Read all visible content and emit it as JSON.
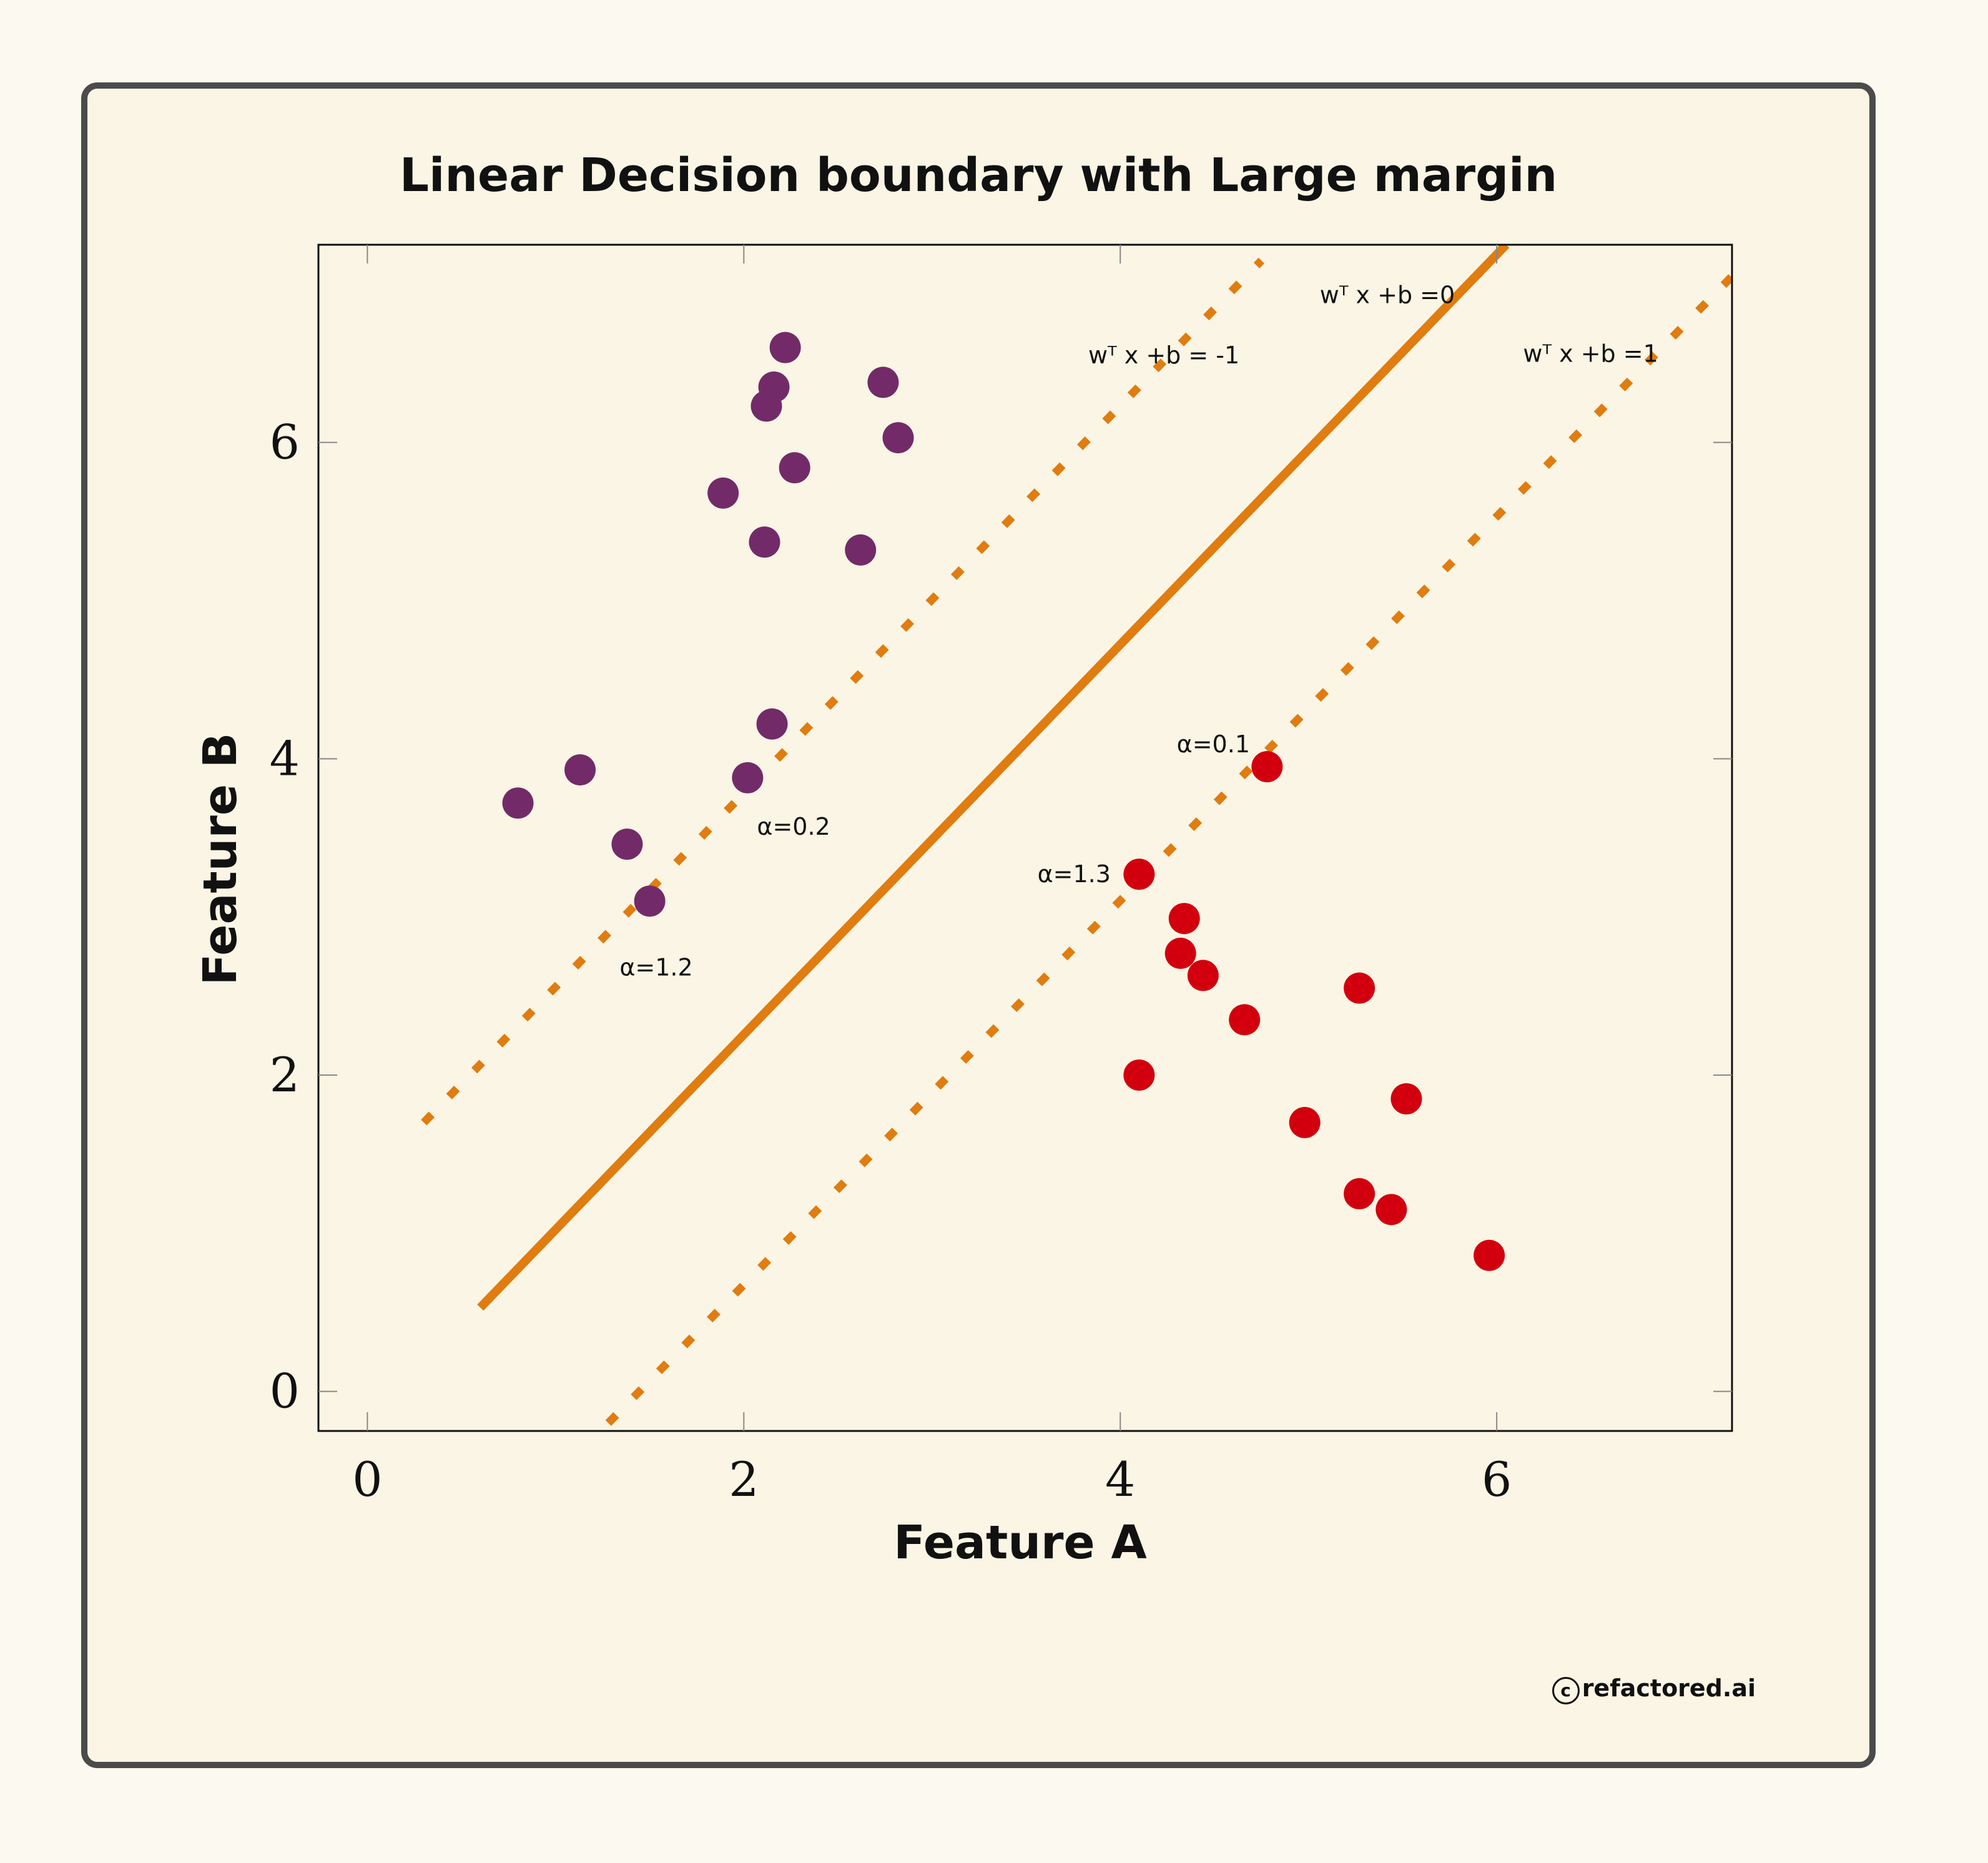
{
  "colors": {
    "page_bg": "#fcf9f0",
    "card_bg": "#faf5e4",
    "card_border": "#4b4b4b",
    "line": "#e07c10",
    "class_neg": "#722b68",
    "class_pos": "#d2000f"
  },
  "chart_data": {
    "type": "scatter",
    "title": "Linear Decision boundary with Large margin",
    "xlabel": "Feature A",
    "ylabel": "Feature B",
    "xlim": [
      -0.26,
      7.25
    ],
    "ylim": [
      -0.25,
      7.25
    ],
    "xticks": [
      0,
      2,
      4,
      6
    ],
    "yticks": [
      0,
      2,
      4,
      6
    ],
    "grid": false,
    "series": [
      {
        "color": "#722b68",
        "points": [
          [
            2.22,
            6.6
          ],
          [
            2.16,
            6.35
          ],
          [
            2.12,
            6.23
          ],
          [
            2.74,
            6.38
          ],
          [
            2.82,
            6.03
          ],
          [
            2.27,
            5.84
          ],
          [
            1.89,
            5.68
          ],
          [
            2.11,
            5.37
          ],
          [
            2.62,
            5.32
          ],
          [
            2.15,
            4.22
          ],
          [
            2.02,
            3.88
          ],
          [
            1.13,
            3.93
          ],
          [
            0.8,
            3.72
          ],
          [
            1.38,
            3.46
          ],
          [
            1.5,
            3.1
          ]
        ]
      },
      {
        "color": "#d2000f",
        "points": [
          [
            4.78,
            3.95
          ],
          [
            4.1,
            3.27
          ],
          [
            4.34,
            2.99
          ],
          [
            4.32,
            2.77
          ],
          [
            4.44,
            2.63
          ],
          [
            4.66,
            2.35
          ],
          [
            5.27,
            2.55
          ],
          [
            4.1,
            2.0
          ],
          [
            5.52,
            1.85
          ],
          [
            4.98,
            1.7
          ],
          [
            5.27,
            1.25
          ],
          [
            5.44,
            1.15
          ],
          [
            5.96,
            0.86
          ]
        ]
      }
    ],
    "lines": [
      {
        "label": "wᵀ x +b =0",
        "style": "solid",
        "from": [
          0.6,
          0.53
        ],
        "to": [
          6.05,
          7.25
        ]
      },
      {
        "label": "wᵀ x +b = -1",
        "style": "dashed",
        "from": [
          0.3,
          1.7
        ],
        "to": [
          4.75,
          7.15
        ]
      },
      {
        "label": "wᵀ x +b =1",
        "style": "dashed",
        "from": [
          1.28,
          -0.2
        ],
        "to": [
          7.25,
          7.05
        ]
      }
    ],
    "annotations": [
      {
        "text": "wᵀ x +b =0",
        "x": 5.06,
        "y": 6.88
      },
      {
        "text": "wᵀ x +b = -1",
        "x": 3.83,
        "y": 6.5
      },
      {
        "text": "wᵀ x +b =1",
        "x": 6.14,
        "y": 6.51
      },
      {
        "text": "α=0.1",
        "x": 4.3,
        "y": 4.04
      },
      {
        "text": "α=0.2",
        "x": 2.07,
        "y": 3.52
      },
      {
        "text": "α=1.3",
        "x": 3.56,
        "y": 3.22
      },
      {
        "text": "α=1.2",
        "x": 1.34,
        "y": 2.63
      }
    ]
  },
  "copyright": {
    "symbol": "c",
    "text": "refactored.ai"
  }
}
